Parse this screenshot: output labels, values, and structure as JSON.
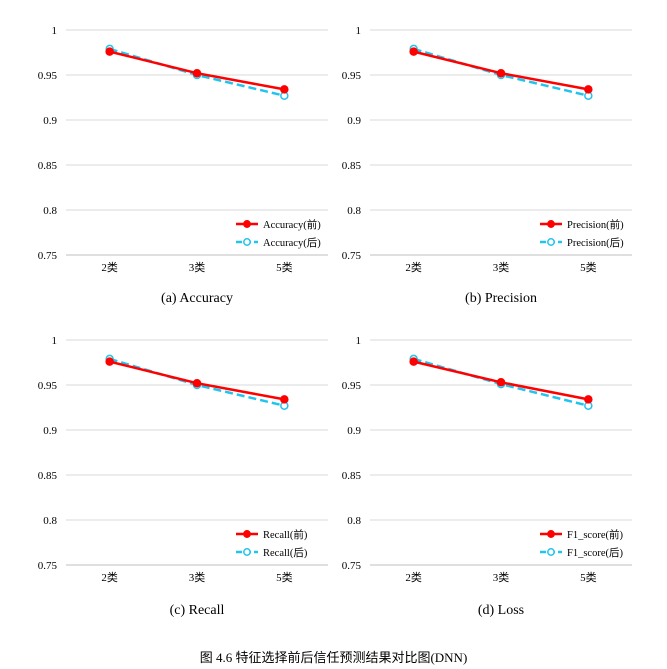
{
  "figure_caption": "图  4.6  特征选择前后信任预测结果对比图(DNN)",
  "colors": {
    "before": "#ff0000",
    "after": "#22c4ee",
    "grid": "#d9d9d9",
    "axis": "#bfbfbf"
  },
  "chart_data": [
    {
      "type": "line",
      "caption": "(a) Accuracy",
      "categories": [
        "2类",
        "3类",
        "5类"
      ],
      "yticks": [
        "0.75",
        "0.8",
        "0.85",
        "0.9",
        "0.95",
        "1"
      ],
      "ylim": [
        0.75,
        1
      ],
      "grid": true,
      "legend_position": "bottom-right",
      "series": [
        {
          "name": "Accuracy(前)",
          "values": [
            0.976,
            0.952,
            0.934
          ]
        },
        {
          "name": "Accuracy(后)",
          "values": [
            0.979,
            0.95,
            0.927
          ]
        }
      ]
    },
    {
      "type": "line",
      "caption": "(b) Precision",
      "categories": [
        "2类",
        "3类",
        "5类"
      ],
      "yticks": [
        "0.75",
        "0.8",
        "0.85",
        "0.9",
        "0.95",
        "1"
      ],
      "ylim": [
        0.75,
        1
      ],
      "grid": true,
      "legend_position": "bottom-right",
      "series": [
        {
          "name": "Precision(前)",
          "values": [
            0.976,
            0.952,
            0.934
          ]
        },
        {
          "name": "Precision(后)",
          "values": [
            0.979,
            0.95,
            0.927
          ]
        }
      ]
    },
    {
      "type": "line",
      "caption": "(c) Recall",
      "categories": [
        "2类",
        "3类",
        "5类"
      ],
      "yticks": [
        "0.75",
        "0.8",
        "0.85",
        "0.9",
        "0.95",
        "1"
      ],
      "ylim": [
        0.75,
        1
      ],
      "grid": true,
      "legend_position": "bottom-right",
      "series": [
        {
          "name": "Recall(前)",
          "values": [
            0.976,
            0.952,
            0.934
          ]
        },
        {
          "name": "Recall(后)",
          "values": [
            0.979,
            0.95,
            0.927
          ]
        }
      ]
    },
    {
      "type": "line",
      "caption": "(d) Loss",
      "categories": [
        "2类",
        "3类",
        "5类"
      ],
      "yticks": [
        "0.75",
        "0.8",
        "0.85",
        "0.9",
        "0.95",
        "1"
      ],
      "ylim": [
        0.75,
        1
      ],
      "grid": true,
      "legend_position": "bottom-right",
      "series": [
        {
          "name": "F1_score(前)",
          "values": [
            0.976,
            0.953,
            0.934
          ]
        },
        {
          "name": "F1_score(后)",
          "values": [
            0.979,
            0.951,
            0.927
          ]
        }
      ]
    }
  ]
}
